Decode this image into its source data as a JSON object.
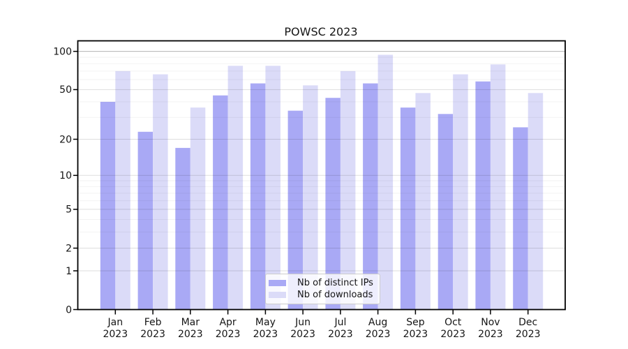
{
  "chart_data": {
    "type": "bar",
    "title": "POWSC 2023",
    "categories": [
      "Jan",
      "Feb",
      "Mar",
      "Apr",
      "May",
      "Jun",
      "Jul",
      "Aug",
      "Sep",
      "Oct",
      "Nov",
      "Dec"
    ],
    "year_label": "2023",
    "series": [
      {
        "name": "Nb of distinct IPs",
        "color": "#a9a9f5",
        "values": [
          40,
          23,
          17,
          45,
          56,
          34,
          43,
          56,
          36,
          32,
          58,
          25
        ]
      },
      {
        "name": "Nb of downloads",
        "color": "#dbdbf8",
        "values": [
          70,
          66,
          36,
          77,
          77,
          54,
          70,
          94,
          47,
          66,
          79,
          47
        ]
      }
    ],
    "y_scale": "log1p",
    "ylim": [
      0,
      121
    ],
    "y_major_ticks": [
      0,
      1,
      2,
      5,
      10,
      20,
      50,
      100
    ],
    "y_minor_ticks": [
      3,
      4,
      6,
      7,
      8,
      9,
      30,
      40,
      60,
      70,
      80,
      90
    ],
    "grid": true,
    "legend_position": "lower center",
    "colors": {
      "axis": "#000000",
      "grid_major": "rgba(0,0,0,0.13)",
      "grid_top_major": "rgba(0,0,0,0.30)",
      "grid_minor": "rgba(0,0,0,0.05)",
      "text": "#151515"
    }
  }
}
